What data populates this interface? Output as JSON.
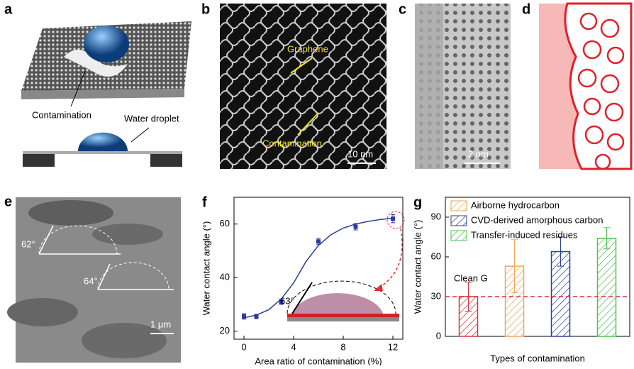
{
  "panels": {
    "a": {
      "label": "a",
      "contamination": "Contamination",
      "droplet": "Water droplet"
    },
    "b": {
      "label": "b",
      "graphene": "Graphene",
      "contamination": "Contamination",
      "scale": "10 nm"
    },
    "c": {
      "label": "c",
      "scale": "2 nm"
    },
    "d": {
      "label": "d"
    },
    "e": {
      "label": "e",
      "angle1": "62°",
      "angle2": "64°",
      "scale": "1 μm"
    }
  },
  "chart_data": [
    {
      "type": "scatter",
      "panel": "f",
      "xlabel": "Area ratio of contamination (%)",
      "ylabel": "Water contact angle (°)",
      "x": [
        0,
        1,
        3,
        6,
        9,
        12
      ],
      "series": [
        {
          "color": "#2b3a9a",
          "values": [
            25.5,
            25.5,
            31,
            53.5,
            59,
            62
          ],
          "errors": [
            1,
            0.8,
            1,
            1.2,
            1.2,
            1.5
          ]
        }
      ],
      "fit": {
        "color": "#2b3a9a",
        "x": [
          0,
          1,
          2,
          3,
          4,
          5,
          6,
          7,
          8,
          9,
          10,
          11,
          12
        ],
        "values": [
          25,
          26,
          28,
          32,
          38,
          46,
          52,
          56,
          58.5,
          60,
          61,
          61.7,
          62.2
        ]
      },
      "annotation": "63°",
      "xlim": [
        -0.8,
        12.8
      ],
      "ylim": [
        17,
        70
      ],
      "xticks": [
        0,
        4,
        8,
        12
      ],
      "yticks": [
        20,
        40,
        60
      ]
    },
    {
      "type": "bar",
      "panel": "g",
      "xlabel": "Types of contamination",
      "ylabel": "Water contact angle (°)",
      "categories": [
        "Clean G",
        "Airborne hydrocarbon",
        "CVD-derived amorphous carbon",
        "Transfer-induced residues"
      ],
      "values": [
        30,
        53,
        64,
        74
      ],
      "errors": [
        11,
        20,
        11,
        8
      ],
      "colors": [
        "#d8343f",
        "#f2a65a",
        "#2a3f9a",
        "#4fc24f"
      ],
      "reference_line": 30,
      "reference_color": "#d8343f",
      "ylim": [
        0,
        105
      ],
      "yticks": [
        0,
        30,
        60,
        90
      ]
    }
  ]
}
